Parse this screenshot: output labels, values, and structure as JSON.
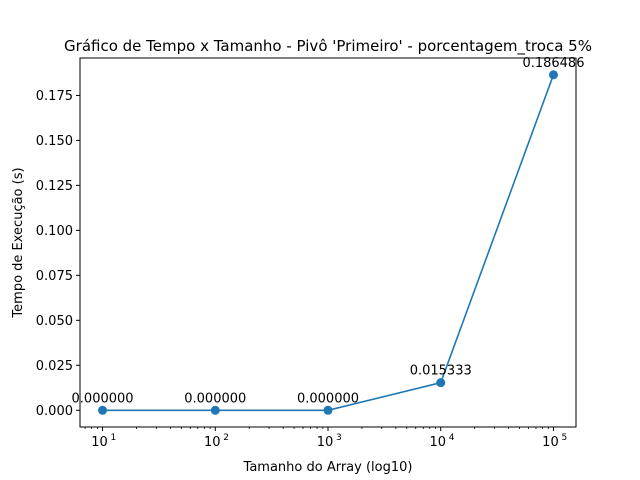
{
  "chart_data": {
    "type": "line",
    "title": "Gráfico de Tempo x Tamanho - Pivô 'Primeiro' - porcentagem_troca 5%",
    "xlabel": "Tamanho do Array (log10)",
    "ylabel": "Tempo de Execução (s)",
    "x_scale": "log",
    "x": [
      10,
      100,
      1000,
      10000,
      100000
    ],
    "x_ticks": [
      {
        "base": "10",
        "exp": "1"
      },
      {
        "base": "10",
        "exp": "2"
      },
      {
        "base": "10",
        "exp": "3"
      },
      {
        "base": "10",
        "exp": "4"
      },
      {
        "base": "10",
        "exp": "5"
      }
    ],
    "y_ticks": [
      "0.000",
      "0.025",
      "0.050",
      "0.075",
      "0.100",
      "0.125",
      "0.150",
      "0.175"
    ],
    "y_tick_values": [
      0,
      0.025,
      0.05,
      0.075,
      0.1,
      0.125,
      0.15,
      0.175
    ],
    "ylim": [
      -0.0093,
      0.1958
    ],
    "xlim_log10": [
      0.8,
      5.2
    ],
    "grid": false,
    "legend": "none",
    "series": [
      {
        "values": [
          0.0,
          0.0,
          0.0,
          0.015333,
          0.186486
        ],
        "data_labels": [
          "0.000000",
          "0.000000",
          "0.000000",
          "0.015333",
          "0.186486"
        ],
        "color": "#1f77b4",
        "marker": "circle"
      }
    ]
  }
}
